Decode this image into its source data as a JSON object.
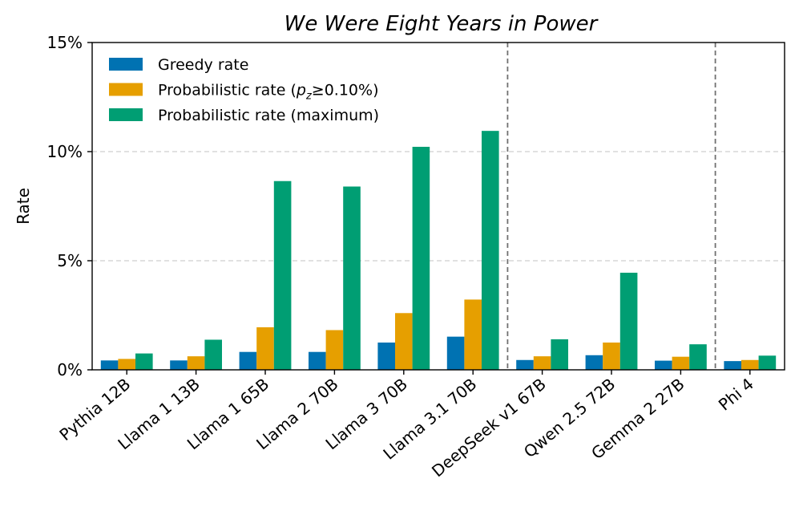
{
  "chart_data": {
    "type": "bar",
    "title": "We Were Eight Years in Power",
    "xlabel": "",
    "ylabel": "Rate",
    "ylim": [
      0,
      15
    ],
    "y_ticks": [
      0,
      5,
      10,
      15
    ],
    "y_tick_labels": [
      "0%",
      "5%",
      "10%",
      "15%"
    ],
    "grid": "horizontal-dashed",
    "legend_position": "top-left",
    "categories": [
      "Pythia 12B",
      "Llama 1 13B",
      "Llama 1 65B",
      "Llama 2 70B",
      "Llama 3 70B",
      "Llama 3.1 70B",
      "DeepSeek v1 67B",
      "Qwen 2.5 72B",
      "Gemma 2 27B",
      "Phi 4"
    ],
    "series": [
      {
        "name": "Greedy rate",
        "color": "#0072b2",
        "values": [
          0.43,
          0.43,
          0.82,
          0.82,
          1.25,
          1.52,
          0.45,
          0.67,
          0.42,
          0.4
        ]
      },
      {
        "name": "Probabilistic rate (pz≥0.10%)",
        "name_prefix": "Probabilistic rate (",
        "name_p": "p",
        "name_sub": "z",
        "name_suffix": "≥0.10%)",
        "color": "#e69f00",
        "values": [
          0.5,
          0.62,
          1.95,
          1.82,
          2.6,
          3.22,
          0.62,
          1.25,
          0.6,
          0.45
        ]
      },
      {
        "name": "Probabilistic rate (maximum)",
        "color": "#009e73",
        "values": [
          0.75,
          1.38,
          8.65,
          8.4,
          10.22,
          10.95,
          1.4,
          4.45,
          1.17,
          0.65
        ]
      }
    ],
    "vertical_separators_after": [
      "Llama 3.1 70B",
      "Gemma 2 27B"
    ]
  }
}
